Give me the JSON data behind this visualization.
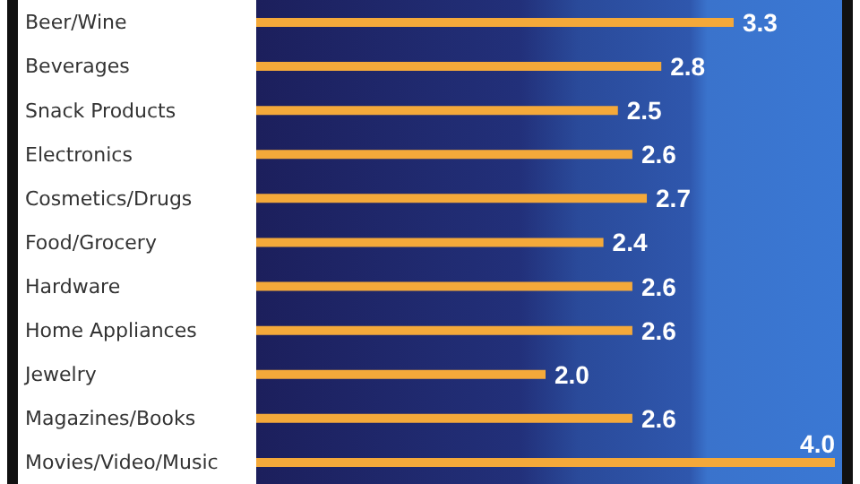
{
  "chart_data": {
    "type": "bar",
    "orientation": "horizontal",
    "categories": [
      "Beer/Wine",
      "Beverages",
      "Snack Products",
      "Electronics",
      "Cosmetics/Drugs",
      "Food/Grocery",
      "Hardware",
      "Home Appliances",
      "Jewelry",
      "Magazines/Books",
      "Movies/Video/Music"
    ],
    "values": [
      3.3,
      2.8,
      2.5,
      2.6,
      2.7,
      2.4,
      2.6,
      2.6,
      2.0,
      2.6,
      4.0
    ],
    "value_labels": [
      "3.3",
      "2.8",
      "2.5",
      "2.6",
      "2.7",
      "2.4",
      "2.6",
      "2.6",
      "2.0",
      "2.6",
      "4.0"
    ],
    "color": "#f4a93a"
  }
}
